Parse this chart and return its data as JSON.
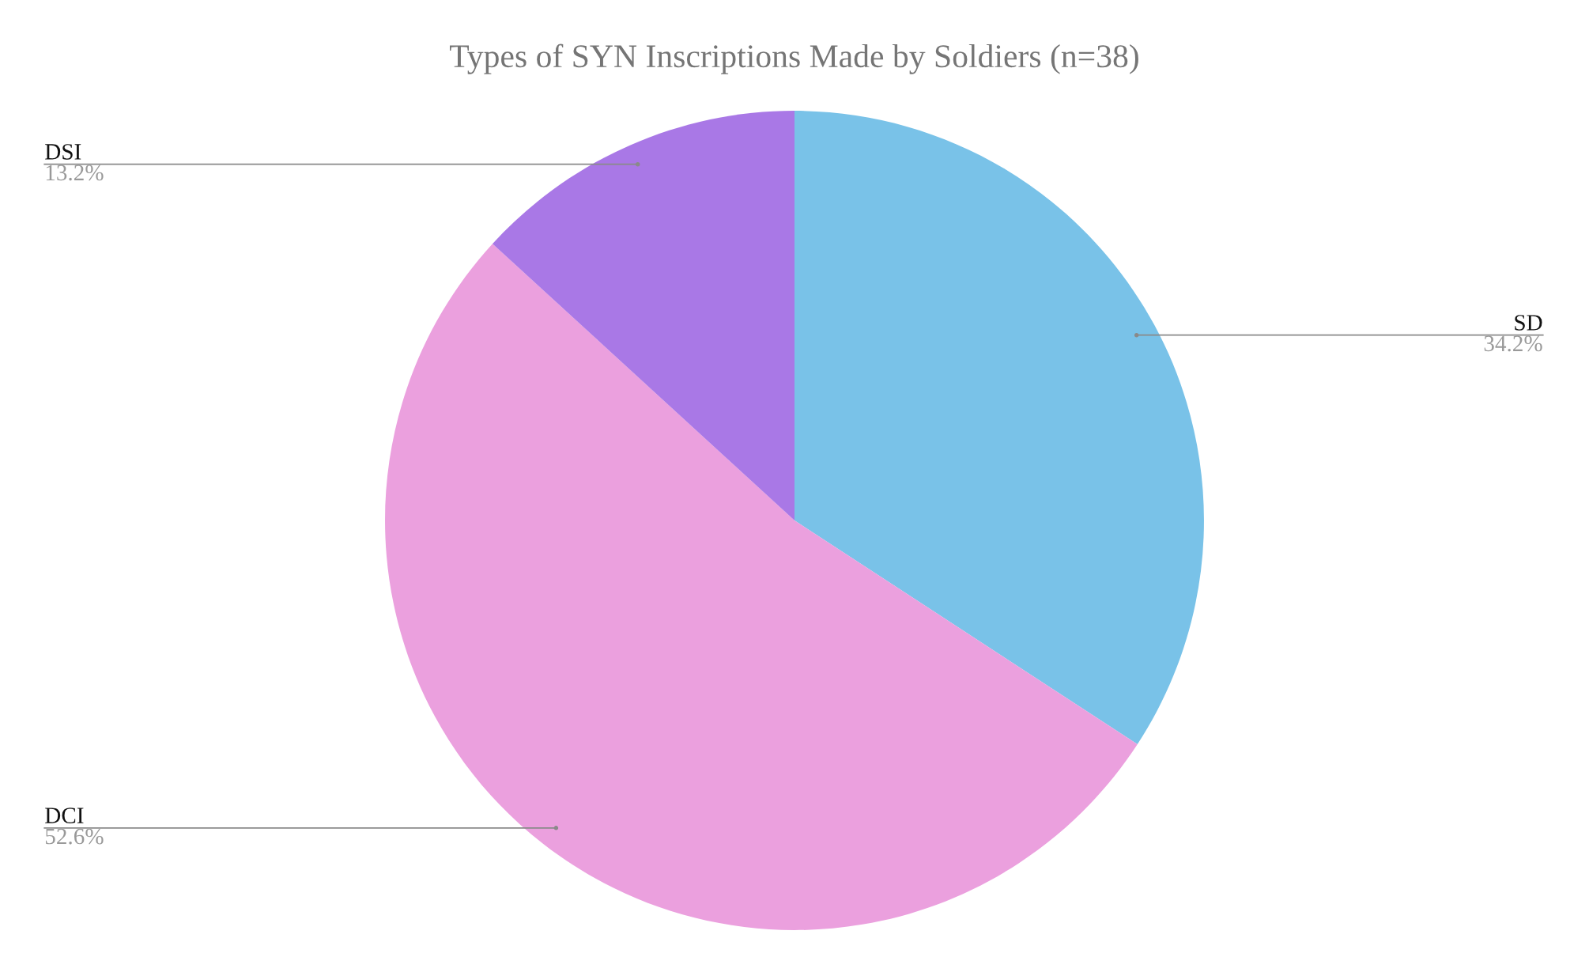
{
  "chart_data": {
    "type": "pie",
    "title": "Types of SYN Inscriptions Made by Soldiers (n=38)",
    "categories": [
      "SD",
      "DCI",
      "DSI"
    ],
    "values": [
      34.2,
      52.6,
      13.2
    ],
    "colors": [
      "#79c2e8",
      "#eba0de",
      "#a978e6"
    ],
    "value_labels": [
      "34.2%",
      "52.6%",
      "13.2%"
    ]
  }
}
